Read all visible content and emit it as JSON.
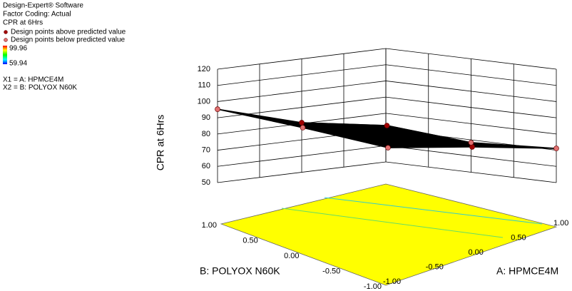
{
  "chart_data": {
    "type": "surface3d",
    "annotations": [
      "Design-Expert® Software",
      "Factor Coding: Actual",
      "CPR at 6Hrs"
    ],
    "colorbar": {
      "colors": [
        "#ff0000",
        "#ffff00",
        "#00ff00",
        "#00ffff",
        "#0000ff"
      ],
      "range": [
        59.94,
        99.96
      ]
    },
    "factors": [
      "X1 = A: HPMCE4M",
      "X2 = B: POLYOX N60K"
    ],
    "xlabel": "A: HPMCE4M",
    "ylabel": "B: POLYOX N60K",
    "zlabel": "CPR at 6Hrs",
    "xlim": [
      -1,
      1
    ],
    "ylim": [
      -1,
      1
    ],
    "zlim": [
      50,
      120
    ],
    "xticks": [
      {
        "value": -1,
        "label": "-1.00"
      },
      {
        "value": -0.5,
        "label": "-0.50"
      },
      {
        "value": 0,
        "label": "0.00"
      },
      {
        "value": 0.5,
        "label": "0.50"
      },
      {
        "value": 1,
        "label": "1.00"
      }
    ],
    "yticks": [
      {
        "value": -1,
        "label": "-1.00"
      },
      {
        "value": -0.5,
        "label": "-0.50"
      },
      {
        "value": 0,
        "label": "0.00"
      },
      {
        "value": 0.5,
        "label": "0.50"
      },
      {
        "value": 1,
        "label": "1.00"
      }
    ],
    "zticks": [
      50,
      60,
      70,
      80,
      90,
      100,
      110,
      120
    ],
    "surface": {
      "x": [
        -1,
        0,
        1
      ],
      "y": [
        -1,
        0,
        1
      ],
      "z": [
        [
          84.3,
          78.4,
          71.1
        ],
        [
          90.3,
          85.2,
          68.3
        ],
        [
          95.3,
          80.6,
          72.4
        ]
      ],
      "color": "#000000"
    },
    "floor_color": "#ffff00",
    "series": [
      {
        "name": "Design points above predicted value",
        "color": "#a00000",
        "x": [
          0,
          0,
          0
        ],
        "y": [
          1,
          0,
          -1
        ],
        "values": [
          80.6,
          85.2,
          78.4
        ]
      },
      {
        "name": "Design points below predicted value",
        "color": "#e07070",
        "x": [
          -1,
          -1,
          -1,
          1,
          1
        ],
        "y": [
          1,
          0,
          -1,
          0,
          -1
        ],
        "values": [
          95.3,
          90.3,
          84.3,
          68.3,
          71.1
        ]
      }
    ]
  }
}
